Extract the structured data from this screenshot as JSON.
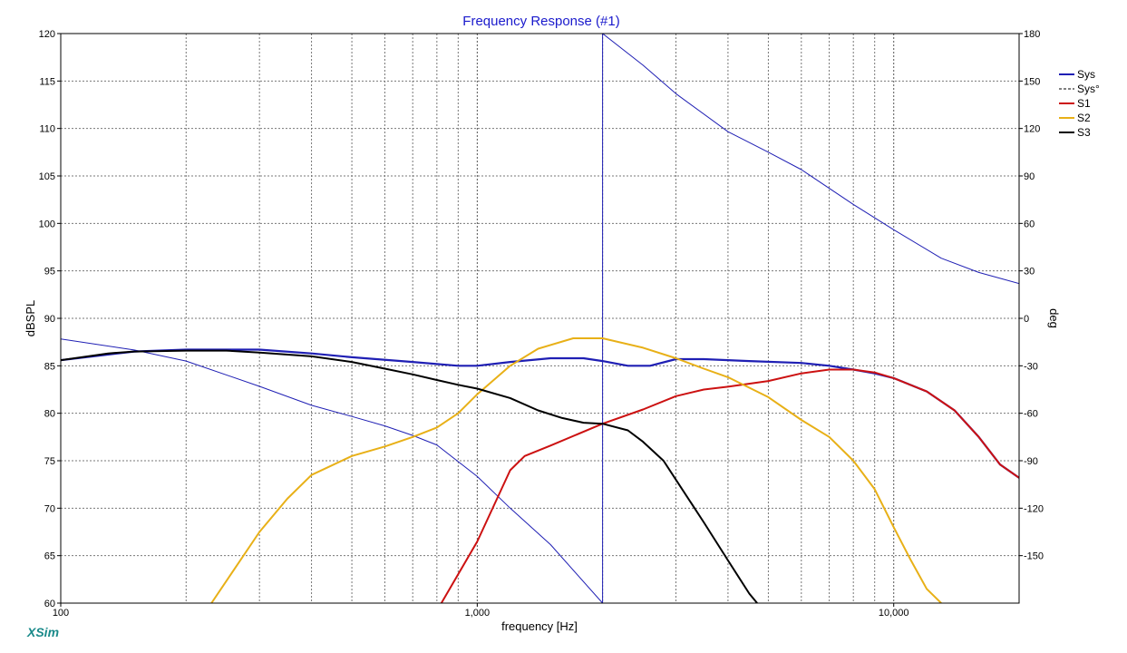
{
  "app": {
    "brand": "XSim"
  },
  "chart_data": {
    "type": "line",
    "title": "Frequency Response (#1)",
    "xlabel": "frequency [Hz]",
    "ylabel": "dBSPL",
    "y2label": "deg",
    "xscale": "log",
    "xlim": [
      100,
      20000
    ],
    "ylim": [
      60,
      120
    ],
    "y2lim": [
      -180,
      180
    ],
    "xticks": [
      {
        "value": 100,
        "label": "100"
      },
      {
        "value": 1000,
        "label": "1,000"
      },
      {
        "value": 10000,
        "label": "10,000"
      }
    ],
    "yticks": [
      60,
      65,
      70,
      75,
      80,
      85,
      90,
      95,
      100,
      105,
      110,
      115,
      120
    ],
    "y2ticks": [
      {
        "value": 180,
        "label": "180"
      },
      {
        "value": 150,
        "label": "150"
      },
      {
        "value": 120,
        "label": "120"
      },
      {
        "value": 90,
        "label": "90"
      },
      {
        "value": 60,
        "label": "60"
      },
      {
        "value": 30,
        "label": "30"
      },
      {
        "value": 0,
        "label": "0"
      },
      {
        "value": -30,
        "label": "-30"
      },
      {
        "value": -60,
        "label": "-60"
      },
      {
        "value": -90,
        "label": "-90"
      },
      {
        "value": -120,
        "label": "-120"
      },
      {
        "value": -150,
        "label": "-150"
      }
    ],
    "grid": true,
    "legend": "top-right",
    "series": [
      {
        "name": "Sys",
        "axis": "left",
        "color": "#1f1fb4",
        "width": 2.2,
        "dash": "",
        "x": [
          100,
          150,
          200,
          300,
          400,
          500,
          700,
          900,
          1000,
          1200,
          1500,
          1800,
          2000,
          2300,
          2600,
          3000,
          3500,
          4500,
          6000,
          7000,
          8000,
          9000,
          10000,
          12000,
          14000,
          16000,
          18000,
          20000
        ],
        "y": [
          85.6,
          86.5,
          86.7,
          86.7,
          86.3,
          85.9,
          85.4,
          85.0,
          85.0,
          85.4,
          85.8,
          85.8,
          85.5,
          85.0,
          85.0,
          85.7,
          85.7,
          85.5,
          85.3,
          85.0,
          84.6,
          84.2,
          83.7,
          82.3,
          80.3,
          77.5,
          74.6,
          73.2
        ]
      },
      {
        "name": "Sys°",
        "axis": "right",
        "color": "#1f1fb4",
        "width": 1,
        "dash": "",
        "x": [
          100,
          150,
          200,
          300,
          400,
          500,
          600,
          700,
          800,
          1000,
          1200,
          1500,
          2000,
          2000,
          2500,
          3000,
          4000,
          5000,
          6000,
          8000,
          10000,
          13000,
          16000,
          20000
        ],
        "y": [
          -13,
          -20,
          -27,
          -43,
          -55,
          -62,
          -68,
          -74,
          -80,
          -100,
          -120,
          -143,
          -180,
          180,
          160,
          142,
          118,
          105,
          94,
          72,
          56,
          38,
          29,
          22
        ]
      },
      {
        "name": "S1",
        "axis": "left",
        "color": "#cc1111",
        "width": 2,
        "dash": "",
        "x": [
          820,
          1000,
          1200,
          1300,
          1500,
          2000,
          2500,
          3000,
          3500,
          4000,
          5000,
          6000,
          7000,
          8000,
          9000,
          10000,
          12000,
          14000,
          16000,
          18000,
          20000
        ],
        "y": [
          60.0,
          66.5,
          74.0,
          75.5,
          76.6,
          78.9,
          80.4,
          81.8,
          82.5,
          82.8,
          83.4,
          84.2,
          84.6,
          84.6,
          84.3,
          83.7,
          82.3,
          80.3,
          77.5,
          74.6,
          73.2
        ]
      },
      {
        "name": "S2",
        "axis": "left",
        "color": "#e8b017",
        "width": 2,
        "dash": "",
        "x": [
          230,
          300,
          350,
          400,
          500,
          600,
          700,
          800,
          900,
          1000,
          1200,
          1400,
          1700,
          2000,
          2500,
          3000,
          3500,
          4000,
          5000,
          6000,
          7000,
          8000,
          9000,
          10000,
          11000,
          12000,
          13000
        ],
        "y": [
          60.0,
          67.5,
          71.0,
          73.5,
          75.5,
          76.5,
          77.5,
          78.5,
          80.0,
          82.0,
          85.0,
          86.8,
          87.9,
          87.9,
          86.9,
          85.8,
          84.7,
          83.8,
          81.7,
          79.3,
          77.5,
          75.0,
          72.0,
          68.0,
          64.5,
          61.5,
          60.0
        ]
      },
      {
        "name": "S3",
        "axis": "left",
        "color": "#000000",
        "width": 2,
        "dash": "",
        "x": [
          100,
          130,
          150,
          200,
          250,
          300,
          400,
          500,
          600,
          700,
          800,
          900,
          1000,
          1200,
          1400,
          1600,
          1800,
          2000,
          2300,
          2500,
          2800,
          3000,
          3500,
          4000,
          4500,
          4700
        ],
        "y": [
          85.6,
          86.3,
          86.5,
          86.6,
          86.6,
          86.4,
          86.0,
          85.4,
          84.7,
          84.1,
          83.5,
          83.0,
          82.6,
          81.6,
          80.3,
          79.5,
          79.0,
          78.9,
          78.2,
          77.0,
          75.0,
          73.0,
          68.5,
          64.5,
          61.0,
          60.0
        ]
      }
    ]
  }
}
